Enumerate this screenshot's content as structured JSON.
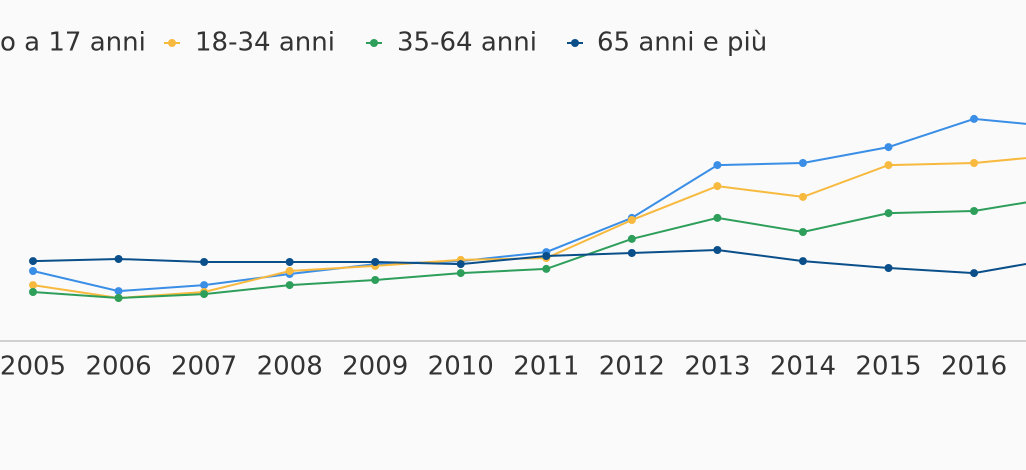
{
  "chart_data": {
    "type": "line",
    "categories": [
      "2005",
      "2006",
      "2007",
      "2008",
      "2009",
      "2010",
      "2011",
      "2012",
      "2013",
      "2014",
      "2015",
      "2016",
      null
    ],
    "series": [
      {
        "name": "o a 17 anni",
        "color": "#3a8ee6",
        "values": [
          23,
          16.3,
          18.3,
          22,
          25.3,
          26.3,
          29.3,
          40.7,
          58.3,
          59,
          64.3,
          73.7,
          71
        ]
      },
      {
        "name": "18-34 anni",
        "color": "#f7b93e",
        "values": [
          18.3,
          14,
          16,
          23,
          24.7,
          26.7,
          27.3,
          40,
          51.3,
          47.7,
          58.3,
          59,
          61.7
        ]
      },
      {
        "name": "35-64 anni",
        "color": "#2e9e5b",
        "values": [
          16,
          14,
          15.3,
          18.3,
          20,
          22.3,
          23.7,
          33.7,
          40.7,
          36,
          42.3,
          43,
          47.7
        ]
      },
      {
        "name": "65 anni e più",
        "color": "#0a4f8a",
        "values": [
          26.3,
          27,
          26,
          26,
          26,
          25.3,
          28,
          29,
          30,
          26.3,
          24,
          22.3,
          27.3
        ]
      }
    ],
    "ylim": [
      0,
      100
    ]
  }
}
